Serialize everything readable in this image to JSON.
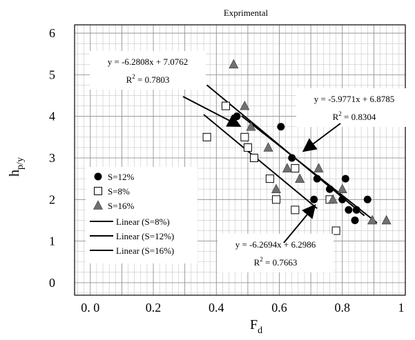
{
  "chart_data": {
    "type": "scatter",
    "title": "Exprimental",
    "xlabel": {
      "main": "F",
      "sub": "d"
    },
    "ylabel": {
      "main": "h",
      "sub": "p/y"
    },
    "xlim": [
      -0.05,
      1.0
    ],
    "ylim": [
      -0.3,
      6.2
    ],
    "grid": true,
    "x_ticks": [
      {
        "value": 0.0,
        "label": "0. 0"
      },
      {
        "value": 0.2,
        "label": "0.2"
      },
      {
        "value": 0.4,
        "label": "0.4"
      },
      {
        "value": 0.6,
        "label": "0.6"
      },
      {
        "value": 0.8,
        "label": "0.8"
      },
      {
        "value": 1.0,
        "label": "1"
      }
    ],
    "y_ticks": [
      {
        "value": 0,
        "label": "0"
      },
      {
        "value": 1,
        "label": "1"
      },
      {
        "value": 2,
        "label": "2"
      },
      {
        "value": 3,
        "label": "3"
      },
      {
        "value": 4,
        "label": "4"
      },
      {
        "value": 5,
        "label": "5"
      },
      {
        "value": 6,
        "label": "6"
      }
    ],
    "series": [
      {
        "name": "S=12%",
        "marker": "circle",
        "points": [
          [
            0.465,
            4.0
          ],
          [
            0.605,
            3.75
          ],
          [
            0.64,
            3.0
          ],
          [
            0.71,
            2.0
          ],
          [
            0.72,
            2.5
          ],
          [
            0.76,
            2.25
          ],
          [
            0.8,
            2.0
          ],
          [
            0.81,
            2.5
          ],
          [
            0.82,
            1.75
          ],
          [
            0.84,
            1.5
          ],
          [
            0.845,
            1.75
          ],
          [
            0.88,
            2.0
          ]
        ]
      },
      {
        "name": "S=8%",
        "marker": "square",
        "points": [
          [
            0.37,
            3.5
          ],
          [
            0.43,
            4.25
          ],
          [
            0.49,
            3.5
          ],
          [
            0.5,
            3.25
          ],
          [
            0.52,
            3.0
          ],
          [
            0.57,
            2.5
          ],
          [
            0.59,
            2.0
          ],
          [
            0.65,
            2.75
          ],
          [
            0.65,
            1.75
          ],
          [
            0.76,
            2.0
          ],
          [
            0.78,
            1.25
          ]
        ]
      },
      {
        "name": "S=16%",
        "marker": "triangle",
        "points": [
          [
            0.455,
            5.25
          ],
          [
            0.49,
            4.25
          ],
          [
            0.51,
            3.75
          ],
          [
            0.565,
            3.25
          ],
          [
            0.59,
            2.25
          ],
          [
            0.625,
            2.75
          ],
          [
            0.665,
            2.5
          ],
          [
            0.725,
            2.75
          ],
          [
            0.77,
            2.0
          ],
          [
            0.8,
            2.25
          ],
          [
            0.895,
            1.5
          ],
          [
            0.94,
            1.5
          ]
        ]
      }
    ],
    "trendlines": [
      {
        "name": "Linear (S=8%)",
        "x_range": [
          0.36,
          0.72
        ],
        "slope": -6.2694,
        "intercept": 6.2986
      },
      {
        "name": "Linear (S=12%)",
        "x_range": [
          0.37,
          0.87
        ],
        "slope": -6.2808,
        "intercept": 7.0762
      },
      {
        "name": "Linear (S=16%)",
        "x_range": [
          0.48,
          0.91
        ],
        "slope": -5.9771,
        "intercept": 6.8785
      }
    ],
    "legend": {
      "position": "bottom-left",
      "entries": [
        "S=12%",
        "S=8%",
        "S=16%",
        "Linear (S=8%)",
        "Linear (S=12%)",
        "Linear (S=16%)"
      ]
    },
    "annotations": [
      {
        "line1": "y = -6.2808x + 7.0762",
        "r2_lead": "R",
        "r2_sup": "2",
        "r2_tail": " = 0.7803"
      },
      {
        "line1": "y = -5.9771x + 6.8785",
        "r2_lead": "R",
        "r2_sup": "2",
        "r2_tail": " = 0.8304"
      },
      {
        "line1": "y = -6.2694x + 6.2986",
        "r2_lead": "R",
        "r2_sup": "2",
        "r2_tail": " = 0.7663"
      }
    ]
  }
}
